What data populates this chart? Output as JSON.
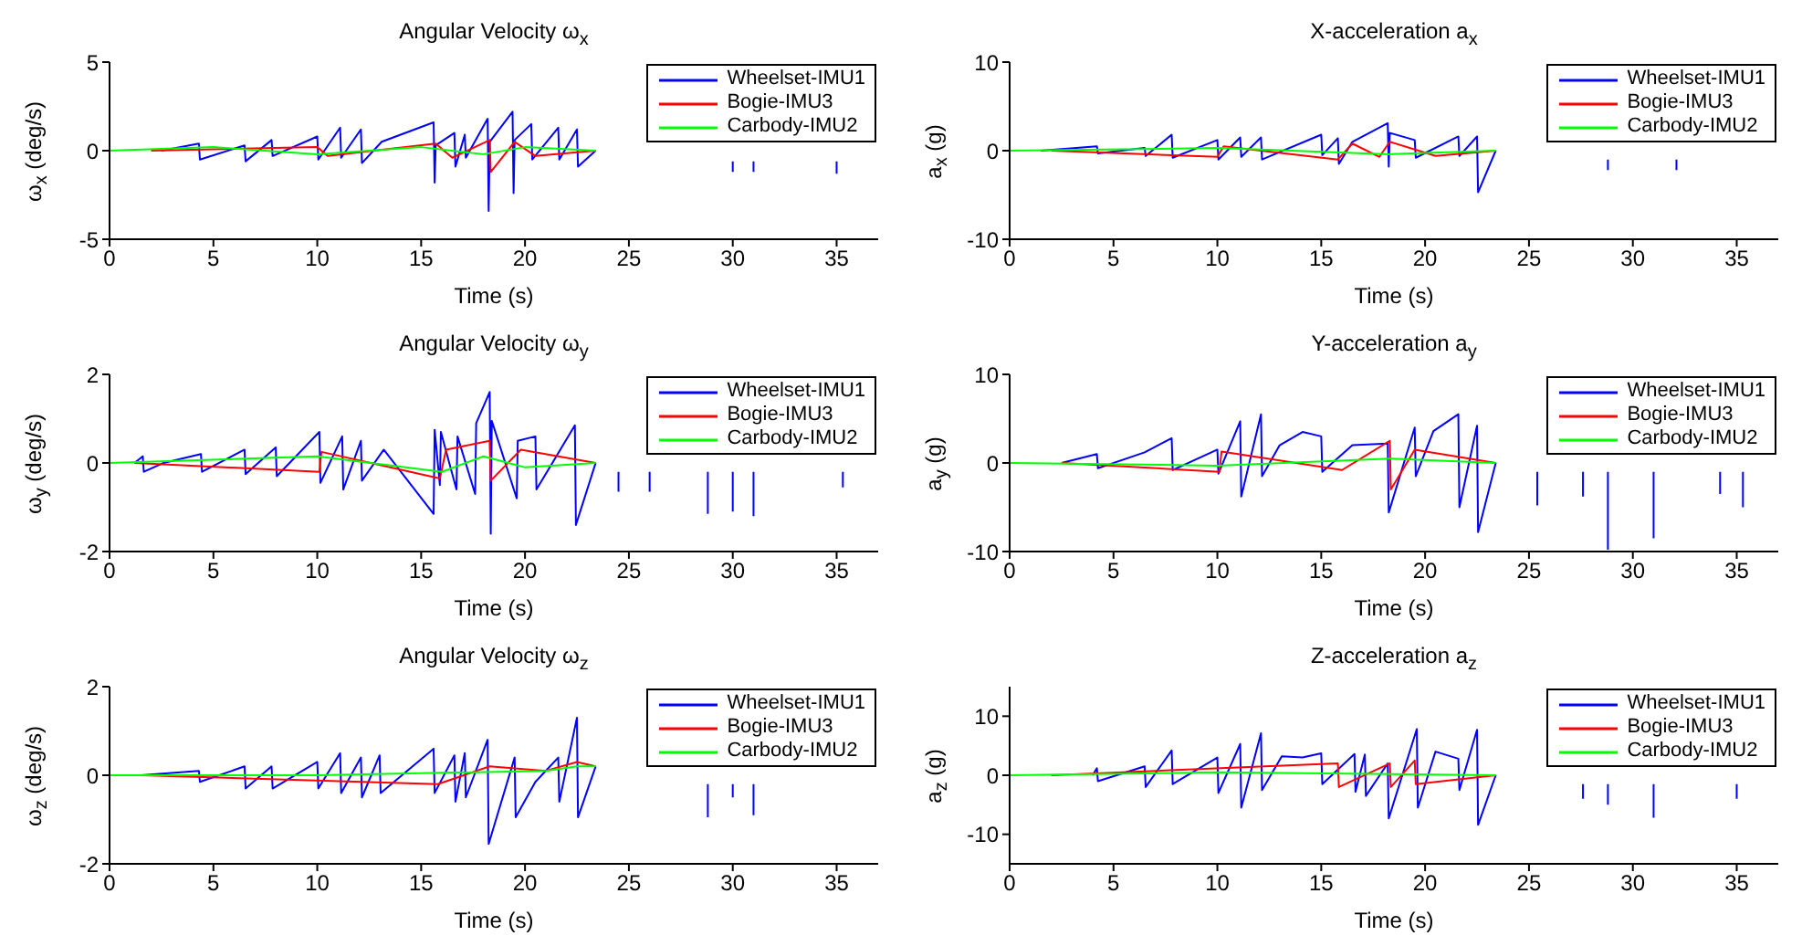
{
  "chart_data": [
    {
      "type": "line",
      "title": "Angular Velocity ω$_{x}$",
      "xlabel": "Time (s)",
      "ylabel": "ω$_{x}$ (deg/s)",
      "xlim": [
        0,
        37
      ],
      "xticks": [
        0,
        5,
        10,
        15,
        20,
        25,
        30,
        35
      ],
      "ylim": [
        -5,
        5
      ],
      "yticks": [
        -5,
        0,
        5
      ],
      "legend": "top right",
      "marker": "none",
      "line_style": "solid",
      "series": [
        {
          "name": "Wheelset-IMU1",
          "color": "#0000ff",
          "x": [
            2.5,
            4.3,
            4.35,
            6.5,
            6.55,
            7.8,
            7.85,
            10,
            10.05,
            11.1,
            11.15,
            12.1,
            12.15,
            13.1,
            15.6,
            15.65,
            15.7,
            16.6,
            16.65,
            17.1,
            17.15,
            18.2,
            18.25,
            18.3,
            19.4,
            19.45,
            19.5,
            20.3,
            20.35,
            21.6,
            21.65,
            22.5,
            22.55,
            23.4,
            24,
            30,
            30,
            30.5,
            31,
            31,
            31.5,
            35,
            35
          ],
          "values": [
            0,
            0.4,
            -0.5,
            0.3,
            -0.6,
            0.6,
            -0.3,
            0.8,
            -0.5,
            1.3,
            -0.4,
            1.2,
            -0.7,
            0.5,
            1.6,
            -1.8,
            0.3,
            1,
            -0.9,
            0.9,
            -0.4,
            1.8,
            -3.4,
            0.5,
            2.2,
            -2.4,
            0.6,
            1.5,
            -0.5,
            1.3,
            -0.5,
            1.2,
            -0.9,
            0,
            null,
            -0.6,
            -1.2,
            null,
            -0.6,
            -1.2,
            null,
            -0.6,
            -1.3
          ]
        },
        {
          "name": "Bogie-IMU3",
          "color": "#ff0000",
          "x": [
            2,
            10,
            10.5,
            15.7,
            16.5,
            18.3,
            18.35,
            19.5,
            20.5,
            23.4
          ],
          "values": [
            0,
            0.2,
            -0.3,
            0.4,
            -0.4,
            0.6,
            -1.2,
            0.5,
            -0.3,
            0
          ]
        },
        {
          "name": "Carbody-IMU2",
          "color": "#00ff00",
          "x": [
            0,
            5,
            10,
            15,
            18,
            20,
            23.4
          ],
          "values": [
            0,
            0.2,
            -0.2,
            0.2,
            -0.2,
            0.2,
            0
          ]
        }
      ]
    },
    {
      "type": "line",
      "title": "X-acceleration a$_{x}$",
      "xlabel": "Time (s)",
      "ylabel": "a$_{x}$ (g)",
      "xlim": [
        0,
        37
      ],
      "xticks": [
        0,
        5,
        10,
        15,
        20,
        25,
        30,
        35
      ],
      "ylim": [
        -10,
        10
      ],
      "yticks": [
        -10,
        0,
        10
      ],
      "legend": "top right",
      "marker": "none",
      "line_style": "solid",
      "series": [
        {
          "name": "Wheelset-IMU1",
          "color": "#0000ff",
          "x": [
            1.5,
            4.2,
            4.25,
            6.5,
            6.55,
            7.8,
            7.85,
            10,
            10.05,
            11.1,
            11.15,
            12.1,
            12.15,
            15,
            15.05,
            15.8,
            15.85,
            16.5,
            18.2,
            18.25,
            18.3,
            19.5,
            19.55,
            21.6,
            21.65,
            22.5,
            22.55,
            23.4,
            24,
            28.8,
            28.8,
            29,
            32.1,
            32.1
          ],
          "values": [
            0,
            0.5,
            -0.3,
            0.3,
            -0.6,
            1.8,
            -0.8,
            1.2,
            -1,
            1.5,
            -0.7,
            1.5,
            -1,
            1.8,
            -0.5,
            1.4,
            -1.5,
            1,
            3.1,
            -1.8,
            2,
            1.2,
            -0.8,
            1.6,
            -0.6,
            1.6,
            -4.7,
            0,
            null,
            -1,
            -2.2,
            null,
            -1,
            -2.2
          ]
        },
        {
          "name": "Bogie-IMU3",
          "color": "#ff0000",
          "x": [
            2,
            10,
            10.3,
            15.8,
            16.5,
            17.8,
            18.3,
            20.5,
            23.4
          ],
          "values": [
            0,
            -0.7,
            0.5,
            -1,
            0.8,
            -0.7,
            1,
            -0.6,
            0
          ]
        },
        {
          "name": "Carbody-IMU2",
          "color": "#00ff00",
          "x": [
            0,
            10,
            18.3,
            23.4
          ],
          "values": [
            0,
            0.3,
            -0.4,
            0
          ]
        }
      ]
    },
    {
      "type": "line",
      "title": "Angular Velocity ω$_{y}$",
      "xlabel": "Time (s)",
      "ylabel": "ω$_{y}$ (deg/s)",
      "xlim": [
        0,
        37
      ],
      "xticks": [
        0,
        5,
        10,
        15,
        20,
        25,
        30,
        35
      ],
      "ylim": [
        -2,
        2
      ],
      "yticks": [
        -2,
        0,
        2
      ],
      "legend": "top right",
      "marker": "none",
      "line_style": "solid",
      "series": [
        {
          "name": "Wheelset-IMU1",
          "color": "#0000ff",
          "x": [
            1.2,
            1.6,
            1.65,
            2.6,
            4.4,
            4.45,
            6.5,
            6.55,
            8,
            8.05,
            10.1,
            10.15,
            11.2,
            11.25,
            12.1,
            12.15,
            13.2,
            15.6,
            15.65,
            15.9,
            15.95,
            16.7,
            16.75,
            17.6,
            17.65,
            18.3,
            18.35,
            18.4,
            19.6,
            19.65,
            20.5,
            20.55,
            22.4,
            22.45,
            23.4,
            24,
            24.5,
            24.5,
            25,
            26,
            26,
            27,
            28.8,
            28.8,
            29,
            30,
            30,
            30.5,
            31,
            31,
            31.5,
            35.3,
            35.3
          ],
          "values": [
            0,
            0.15,
            -0.2,
            0,
            0.2,
            -0.2,
            0.3,
            -0.25,
            0.35,
            -0.3,
            0.7,
            -0.45,
            0.6,
            -0.6,
            0.5,
            -0.4,
            0.3,
            -1.15,
            0.75,
            -0.5,
            0.7,
            -0.6,
            0.6,
            -0.7,
            0.9,
            1.6,
            -1.6,
            0.95,
            -0.8,
            0.5,
            0.6,
            -0.6,
            0.85,
            -1.4,
            0,
            null,
            -0.2,
            -0.65,
            null,
            -0.2,
            -0.65,
            null,
            -0.2,
            -1.15,
            null,
            -0.2,
            -1.1,
            null,
            -0.2,
            -1.2,
            null,
            -0.2,
            -0.55
          ]
        },
        {
          "name": "Bogie-IMU3",
          "color": "#ff0000",
          "x": [
            1.2,
            10.1,
            10.2,
            15.9,
            16.2,
            18.3,
            18.35,
            19.8,
            23.4
          ],
          "values": [
            0,
            -0.2,
            0.25,
            -0.35,
            0.3,
            0.5,
            -0.4,
            0.3,
            0
          ]
        },
        {
          "name": "Carbody-IMU2",
          "color": "#00ff00",
          "x": [
            0,
            10,
            16,
            18,
            20,
            23.4
          ],
          "values": [
            0,
            0.15,
            -0.2,
            0.15,
            -0.1,
            0
          ]
        }
      ]
    },
    {
      "type": "line",
      "title": "Y-acceleration a$_{y}$",
      "xlabel": "Time (s)",
      "ylabel": "a$_{y}$ (g)",
      "xlim": [
        0,
        37
      ],
      "xticks": [
        0,
        5,
        10,
        15,
        20,
        25,
        30,
        35
      ],
      "ylim": [
        -10,
        10
      ],
      "yticks": [
        -10,
        0,
        10
      ],
      "legend": "top right",
      "marker": "none",
      "line_style": "solid",
      "series": [
        {
          "name": "Wheelset-IMU1",
          "color": "#0000ff",
          "x": [
            2.5,
            4.2,
            4.25,
            6.5,
            7.8,
            7.85,
            10,
            10.05,
            11.1,
            11.15,
            12.1,
            12.15,
            13,
            14.1,
            15,
            15.05,
            16.5,
            18.2,
            18.25,
            19.5,
            19.55,
            20.4,
            21.6,
            21.65,
            22.5,
            22.55,
            23.4,
            24,
            25.4,
            25.4,
            26,
            27.6,
            27.6,
            28,
            28.8,
            28.8,
            29,
            31,
            31,
            32,
            34.2,
            34.2,
            34.5,
            35.3,
            35.3
          ],
          "values": [
            0,
            1,
            -0.6,
            1.2,
            2.8,
            -0.8,
            1.5,
            -1.2,
            4.7,
            -3.8,
            5.5,
            -1.5,
            2,
            3.5,
            3,
            -1,
            2,
            2.2,
            -5.6,
            4,
            -1.5,
            3.6,
            5.5,
            -5,
            4.2,
            -7.8,
            0,
            null,
            -1,
            -4.8,
            null,
            -1,
            -3.8,
            null,
            -1,
            -9.8,
            null,
            -1,
            -8.5,
            null,
            -1,
            -3.5,
            null,
            -1,
            -5
          ]
        },
        {
          "name": "Bogie-IMU3",
          "color": "#ff0000",
          "x": [
            2.5,
            10.1,
            10.2,
            16,
            18.3,
            18.35,
            19.5,
            23.4
          ],
          "values": [
            0,
            -1,
            1.3,
            -0.8,
            2.5,
            -3,
            1.5,
            0
          ]
        },
        {
          "name": "Carbody-IMU2",
          "color": "#00ff00",
          "x": [
            0,
            10,
            18.3,
            23.4
          ],
          "values": [
            0,
            -0.3,
            0.5,
            0
          ]
        }
      ]
    },
    {
      "type": "line",
      "title": "Angular Velocity ω$_{z}$",
      "xlabel": "Time (s)",
      "ylabel": "ω$_{z}$ (deg/s)",
      "xlim": [
        0,
        37
      ],
      "xticks": [
        0,
        5,
        10,
        15,
        20,
        25,
        30,
        35
      ],
      "ylim": [
        -2,
        2
      ],
      "yticks": [
        -2,
        0,
        2
      ],
      "legend": "top right",
      "marker": "none",
      "line_style": "solid",
      "series": [
        {
          "name": "Wheelset-IMU1",
          "color": "#0000ff",
          "x": [
            1.5,
            4.3,
            4.35,
            6.5,
            6.55,
            7.8,
            7.85,
            10,
            10.05,
            11.1,
            11.15,
            12.1,
            12.15,
            13,
            13.05,
            15.6,
            15.65,
            16.6,
            16.65,
            17.1,
            17.15,
            18.2,
            18.25,
            19.5,
            19.55,
            20.5,
            21.6,
            21.65,
            22.5,
            22.55,
            23.4,
            24,
            28.8,
            28.8,
            29,
            30,
            30,
            30.5,
            31,
            31
          ],
          "values": [
            0,
            0.1,
            -0.15,
            0.2,
            -0.3,
            0.2,
            -0.3,
            0.3,
            -0.3,
            0.5,
            -0.4,
            0.4,
            -0.5,
            0.45,
            -0.4,
            0.6,
            -0.4,
            0.45,
            -0.6,
            0.5,
            -0.5,
            0.8,
            -1.55,
            0.4,
            -0.95,
            -0.15,
            0.4,
            -0.6,
            1.3,
            -0.95,
            0.2,
            null,
            -0.2,
            -0.95,
            null,
            -0.2,
            -0.5,
            null,
            -0.2,
            -0.9
          ]
        },
        {
          "name": "Bogie-IMU3",
          "color": "#ff0000",
          "x": [
            1.5,
            15.8,
            18.3,
            21,
            22.5,
            23.4
          ],
          "values": [
            0,
            -0.2,
            0.2,
            0.1,
            0.3,
            0.2
          ]
        },
        {
          "name": "Carbody-IMU2",
          "color": "#00ff00",
          "x": [
            0,
            10,
            21,
            22.5,
            23.4
          ],
          "values": [
            0,
            0,
            0.1,
            0.2,
            0.2
          ]
        }
      ]
    },
    {
      "type": "line",
      "title": "Z-acceleration a$_{z}$",
      "xlabel": "Time (s)",
      "ylabel": "a$_{z}$ (g)",
      "xlim": [
        0,
        37
      ],
      "xticks": [
        0,
        5,
        10,
        15,
        20,
        25,
        30,
        35
      ],
      "ylim": [
        -15,
        15
      ],
      "yticks": [
        -10,
        0,
        10
      ],
      "legend": "top right",
      "marker": "none",
      "line_style": "solid",
      "series": [
        {
          "name": "Wheelset-IMU1",
          "color": "#0000ff",
          "x": [
            4,
            4.2,
            4.25,
            6.5,
            6.55,
            7.8,
            7.85,
            10,
            10.05,
            11.1,
            11.15,
            12.1,
            12.15,
            13.1,
            14.1,
            15,
            15.05,
            16.6,
            16.65,
            17.1,
            17.15,
            18.2,
            18.25,
            19.6,
            19.65,
            20.5,
            21.6,
            21.65,
            22.5,
            22.55,
            23.4,
            24,
            27.6,
            27.6,
            28,
            28.8,
            28.8,
            29,
            31,
            31,
            32,
            35,
            35
          ],
          "values": [
            0,
            1.2,
            -1,
            1.5,
            -2,
            4.2,
            -1.5,
            3,
            -3,
            5.3,
            -5.5,
            7.1,
            -2.5,
            3.2,
            3,
            3.7,
            -1.5,
            3.6,
            -2.8,
            3.5,
            -3.5,
            2,
            -7.3,
            7.8,
            -5.5,
            4,
            2.8,
            -2.5,
            7.7,
            -8.4,
            0,
            null,
            -1.5,
            -4,
            null,
            -1.5,
            -5,
            null,
            -1.5,
            -7.2,
            null,
            -1.5,
            -4
          ]
        },
        {
          "name": "Bogie-IMU3",
          "color": "#ff0000",
          "x": [
            2,
            15.8,
            15.85,
            18.3,
            18.35,
            19.5,
            19.55,
            23.4
          ],
          "values": [
            0,
            2,
            -2,
            2,
            -2,
            2.5,
            -1.5,
            0
          ]
        },
        {
          "name": "Carbody-IMU2",
          "color": "#00ff00",
          "x": [
            0,
            10,
            23.4
          ],
          "values": [
            0,
            0.5,
            0
          ]
        }
      ]
    }
  ]
}
